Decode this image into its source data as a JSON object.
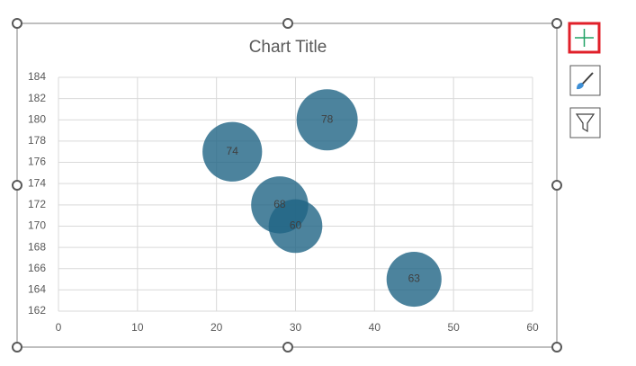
{
  "chart_data": {
    "type": "bubble",
    "title": "Chart Title",
    "series": [
      {
        "color": "#1f6485",
        "x": [
          22,
          34,
          28,
          30,
          45
        ],
        "values": [
          177,
          180,
          172,
          170,
          165
        ],
        "sizes": [
          74,
          78,
          68,
          60,
          63
        ]
      }
    ],
    "xlim": [
      0,
      60
    ],
    "xticks": [
      0,
      10,
      20,
      30,
      40,
      50,
      60
    ],
    "ylim": [
      162,
      184
    ],
    "yticks": [
      162,
      164,
      166,
      168,
      170,
      172,
      174,
      176,
      178,
      180,
      182,
      184
    ],
    "grid": true
  }
}
